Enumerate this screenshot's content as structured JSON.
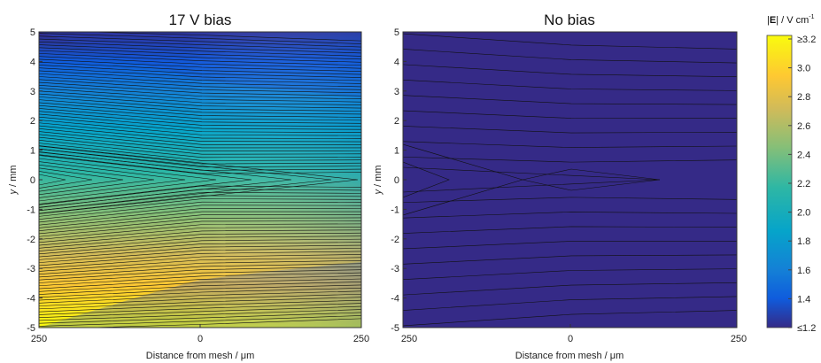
{
  "chart_data": [
    {
      "type": "heatmap",
      "title": "17 V bias",
      "xlabel": "Distance from mesh / μm",
      "ylabel_var": "y",
      "ylabel_unit": " / mm",
      "x_ticks": [
        "250",
        "0",
        "250"
      ],
      "y_ticks": [
        "5",
        "4",
        "3",
        "2",
        "1",
        "0",
        "-1",
        "-2",
        "-3",
        "-4",
        "-5"
      ],
      "ylim": [
        -5,
        5
      ],
      "field": {
        "E_center_left": 3.2,
        "E_center_right": 3.0,
        "E_edge": 1.2,
        "uniform": false
      },
      "contour_lines": 44
    },
    {
      "type": "heatmap",
      "title": "No bias",
      "xlabel": "Distance from mesh / μm",
      "ylabel_var": "y",
      "ylabel_unit": " / mm",
      "x_ticks": [
        "250",
        "0",
        "250"
      ],
      "y_ticks": [
        "5",
        "4",
        "3",
        "2",
        "1",
        "0",
        "-1",
        "-2",
        "-3",
        "-4",
        "-5"
      ],
      "ylim": [
        -5,
        5
      ],
      "field": {
        "value": 1.2,
        "uniform": true
      },
      "contour_lines": 18
    }
  ],
  "colorbar": {
    "title_prefix": "|",
    "title_bold": "E",
    "title_mid": "| / V cm",
    "title_sup": "-1",
    "ticks": [
      "≥3.2",
      "3.0",
      "2.8",
      "2.6",
      "2.4",
      "2.2",
      "2.0",
      "1.8",
      "1.6",
      "1.4",
      "≤1.2"
    ],
    "range": [
      1.2,
      3.2
    ],
    "colors": [
      "#352a87",
      "#0f5cdd",
      "#1481d6",
      "#06a4ca",
      "#2eb7a4",
      "#87bf77",
      "#d1bb59",
      "#fec832",
      "#f9fb0e"
    ]
  }
}
